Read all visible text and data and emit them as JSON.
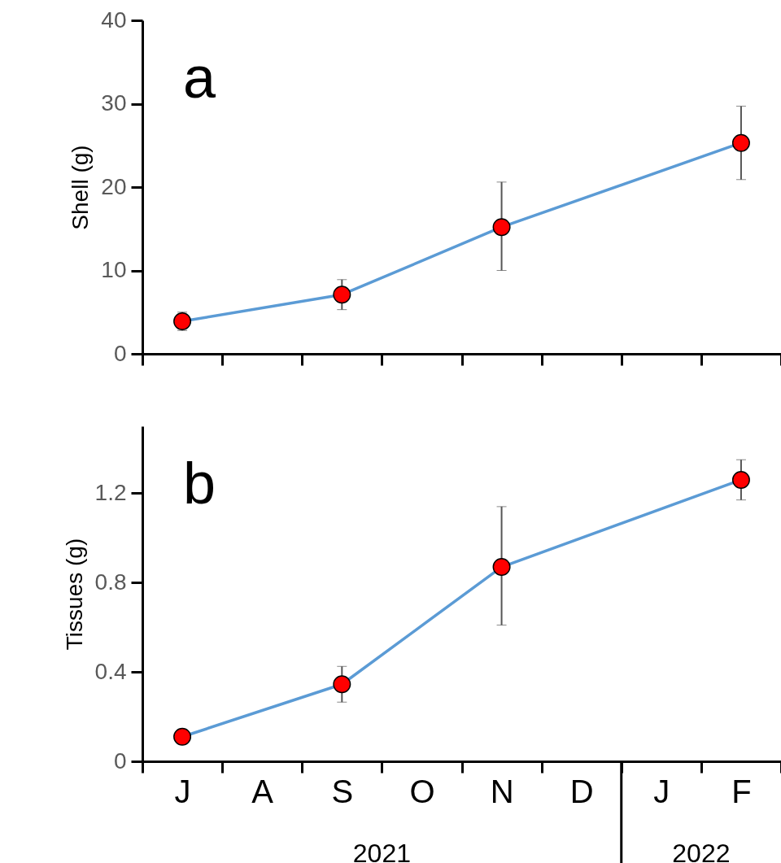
{
  "chart_data": [
    {
      "type": "line",
      "ylabel": "Shell (g)",
      "annotations": [
        "a"
      ],
      "categories": [
        null,
        null,
        null,
        null,
        null,
        null,
        null,
        null
      ],
      "series": [
        {
          "color": "#5b9bd5",
          "colors": [
            "#ff0000",
            null,
            "#ff0000",
            null,
            "#ff0000",
            null,
            null,
            "#ff0000"
          ],
          "values": [
            3.9,
            null,
            7.1,
            null,
            15.2,
            null,
            null,
            25.3
          ],
          "errors": [
            1.1,
            null,
            1.8,
            null,
            [
              10.0,
              20.6
            ],
            null,
            null,
            4.4
          ]
        }
      ],
      "marker": "circle",
      "ylim": [
        0,
        40
      ],
      "yticks": [
        0,
        10,
        20,
        30,
        40
      ],
      "tick_labels": "y"
    },
    {
      "type": "line",
      "ylabel": "Tissues (g)",
      "annotations": [
        "b",
        "2021",
        "2022"
      ],
      "categories": [
        "J",
        "A",
        "S",
        "O",
        "N",
        "D",
        "J",
        "F"
      ],
      "series": [
        {
          "color": "#5b9bd5",
          "colors": [
            "#ff0000",
            null,
            "#ff0000",
            null,
            "#ff0000",
            null,
            null,
            "#ff0000"
          ],
          "values": [
            0.11,
            null,
            0.345,
            null,
            0.87,
            null,
            null,
            1.26
          ],
          "errors": [
            null,
            null,
            0.08,
            null,
            [
              0.61,
              1.14
            ],
            null,
            null,
            0.09
          ]
        }
      ],
      "marker": "circle",
      "ylim": [
        0,
        1.5
      ],
      "yticks": [
        0,
        0.4,
        0.8,
        1.2
      ]
    }
  ]
}
